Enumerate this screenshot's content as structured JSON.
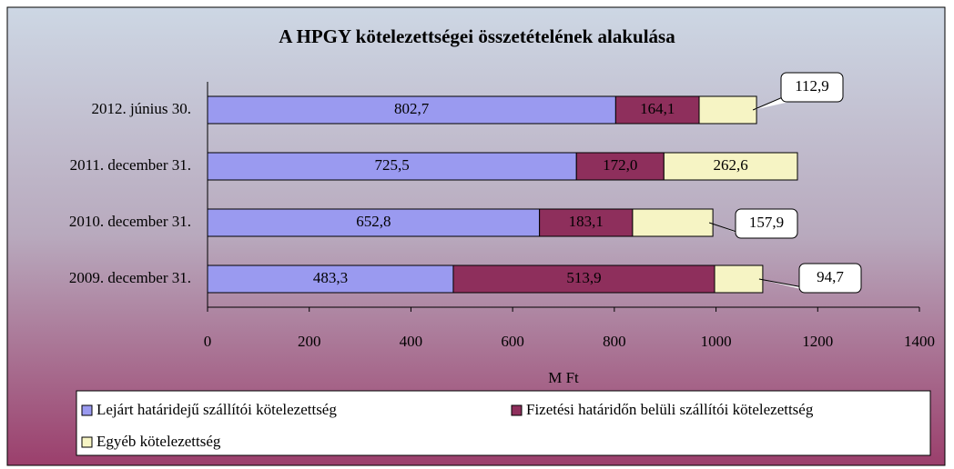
{
  "chart_data": {
    "type": "stacked-barh",
    "title": "A HPGY kötelezettségei összetételének alakulása",
    "categories": [
      "2012. június 30.",
      "2011. december 31.",
      "2010. december 31.",
      "2009. december 31."
    ],
    "series": [
      {
        "name": "Lejárt határidejű szállítói kötelezettség",
        "color": "#9a9af0",
        "values": [
          802.7,
          725.5,
          652.8,
          483.3
        ],
        "value_labels": [
          "802,7",
          "725,5",
          "652,8",
          "483,3"
        ]
      },
      {
        "name": "Fizetési határidőn belüli szállítói kötelezettség",
        "color": "#8e2f5c",
        "values": [
          164.1,
          172.0,
          183.1,
          513.9
        ],
        "value_labels": [
          "164,1",
          "172,0",
          "183,1",
          "513,9"
        ]
      },
      {
        "name": "Egyéb kötelezettség",
        "color": "#f6f4c4",
        "values": [
          112.9,
          262.6,
          157.9,
          94.7
        ],
        "value_labels": [
          "112,9",
          "262,6",
          "157,9",
          "94,7"
        ]
      }
    ],
    "xlabel": "M Ft",
    "xlim": [
      0,
      1400
    ],
    "xticks": [
      0,
      200,
      400,
      600,
      800,
      1000,
      1200,
      1400
    ]
  }
}
